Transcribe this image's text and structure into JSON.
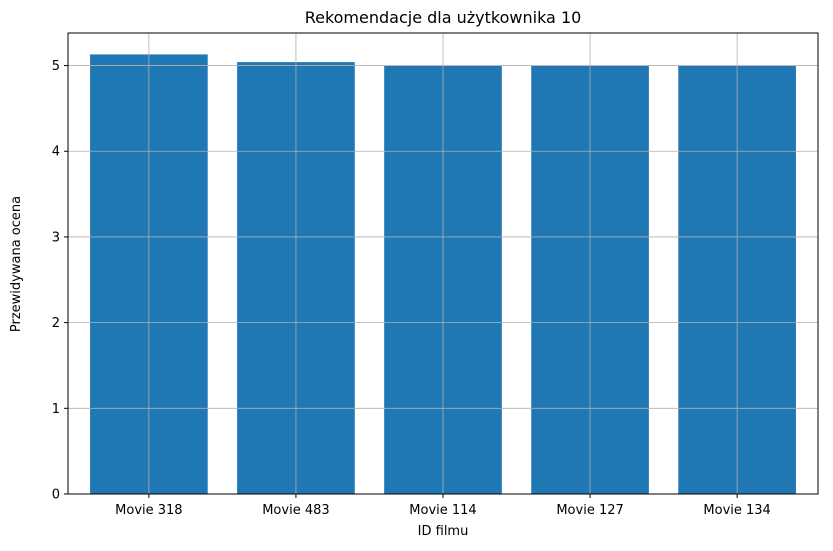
{
  "chart_data": {
    "type": "bar",
    "title": "Rekomendacje dla użytkownika 10",
    "xlabel": "ID filmu",
    "ylabel": "Przewidywana ocena",
    "categories": [
      "Movie 318",
      "Movie 483",
      "Movie 114",
      "Movie 127",
      "Movie 134"
    ],
    "values": [
      5.13,
      5.04,
      5.0,
      5.0,
      5.0
    ],
    "ylim": [
      0,
      5.38
    ],
    "yticks": [
      0,
      1,
      2,
      3,
      4,
      5
    ],
    "grid": true,
    "bar_color": "#1f77b4",
    "grid_color": "#b0b0b0"
  }
}
